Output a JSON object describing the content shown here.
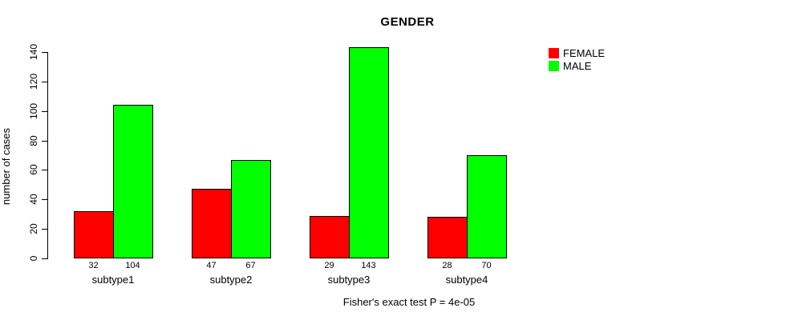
{
  "chart_data": {
    "type": "bar",
    "title": "GENDER",
    "ylabel": "number of cases",
    "xlabel": "",
    "categories": [
      "subtype1",
      "subtype2",
      "subtype3",
      "subtype4"
    ],
    "series": [
      {
        "name": "FEMALE",
        "color": "#ff0000",
        "values": [
          32,
          47,
          29,
          28
        ]
      },
      {
        "name": "MALE",
        "color": "#00ff00",
        "values": [
          104,
          67,
          143,
          70
        ]
      }
    ],
    "bar_value_labels": {
      "FEMALE": [
        "32",
        "47",
        "29",
        "28"
      ],
      "MALE": [
        "104",
        "67",
        "143",
        "70"
      ]
    },
    "yticks": [
      "0",
      "20",
      "40",
      "60",
      "80",
      "100",
      "120",
      "140"
    ],
    "ytick_values": [
      0,
      20,
      40,
      60,
      80,
      100,
      120,
      140
    ],
    "ylim": [
      0,
      140
    ],
    "grid": false,
    "legend_position": "right",
    "bar_border_color": "#000000",
    "annotation": "Fisher's exact test P = 4e-05"
  }
}
